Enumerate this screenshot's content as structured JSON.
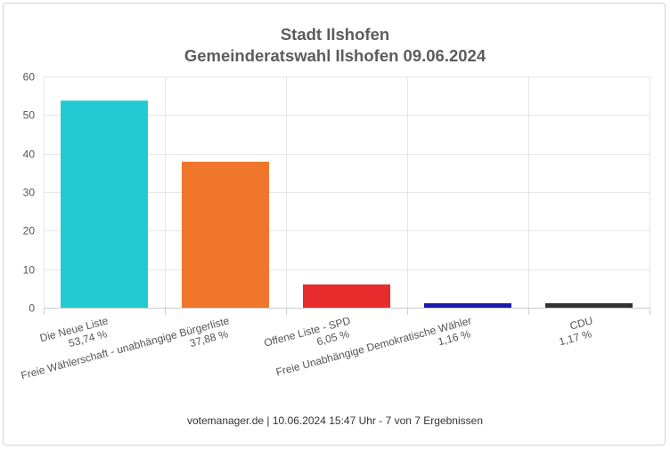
{
  "chart_data": {
    "type": "bar",
    "title": "Stadt Ilshofen",
    "subtitle": "Gemeinderatswahl Ilshofen 09.06.2024",
    "categories": [
      "Die Neue Liste",
      "Freie Wählerschaft - unabhängige Bürgerliste",
      "Offene Liste - SPD",
      "Freie Unabhängige Demokratische Wähler",
      "CDU"
    ],
    "value_labels": [
      "53,74 %",
      "37,88 %",
      "6,05 %",
      "1,16 %",
      "1,17 %"
    ],
    "values": [
      53.74,
      37.88,
      6.05,
      1.16,
      1.17
    ],
    "colors": [
      "#22cbd2",
      "#ef762b",
      "#e62c2c",
      "#1a1aab",
      "#333333"
    ],
    "ylim": [
      0,
      60
    ],
    "yticks": [
      0,
      10,
      20,
      30,
      40,
      50,
      60
    ],
    "grid": true,
    "legend": "none"
  },
  "footer": "votemanager.de | 10.06.2024 15:47 Uhr - 7 von 7 Ergebnissen"
}
